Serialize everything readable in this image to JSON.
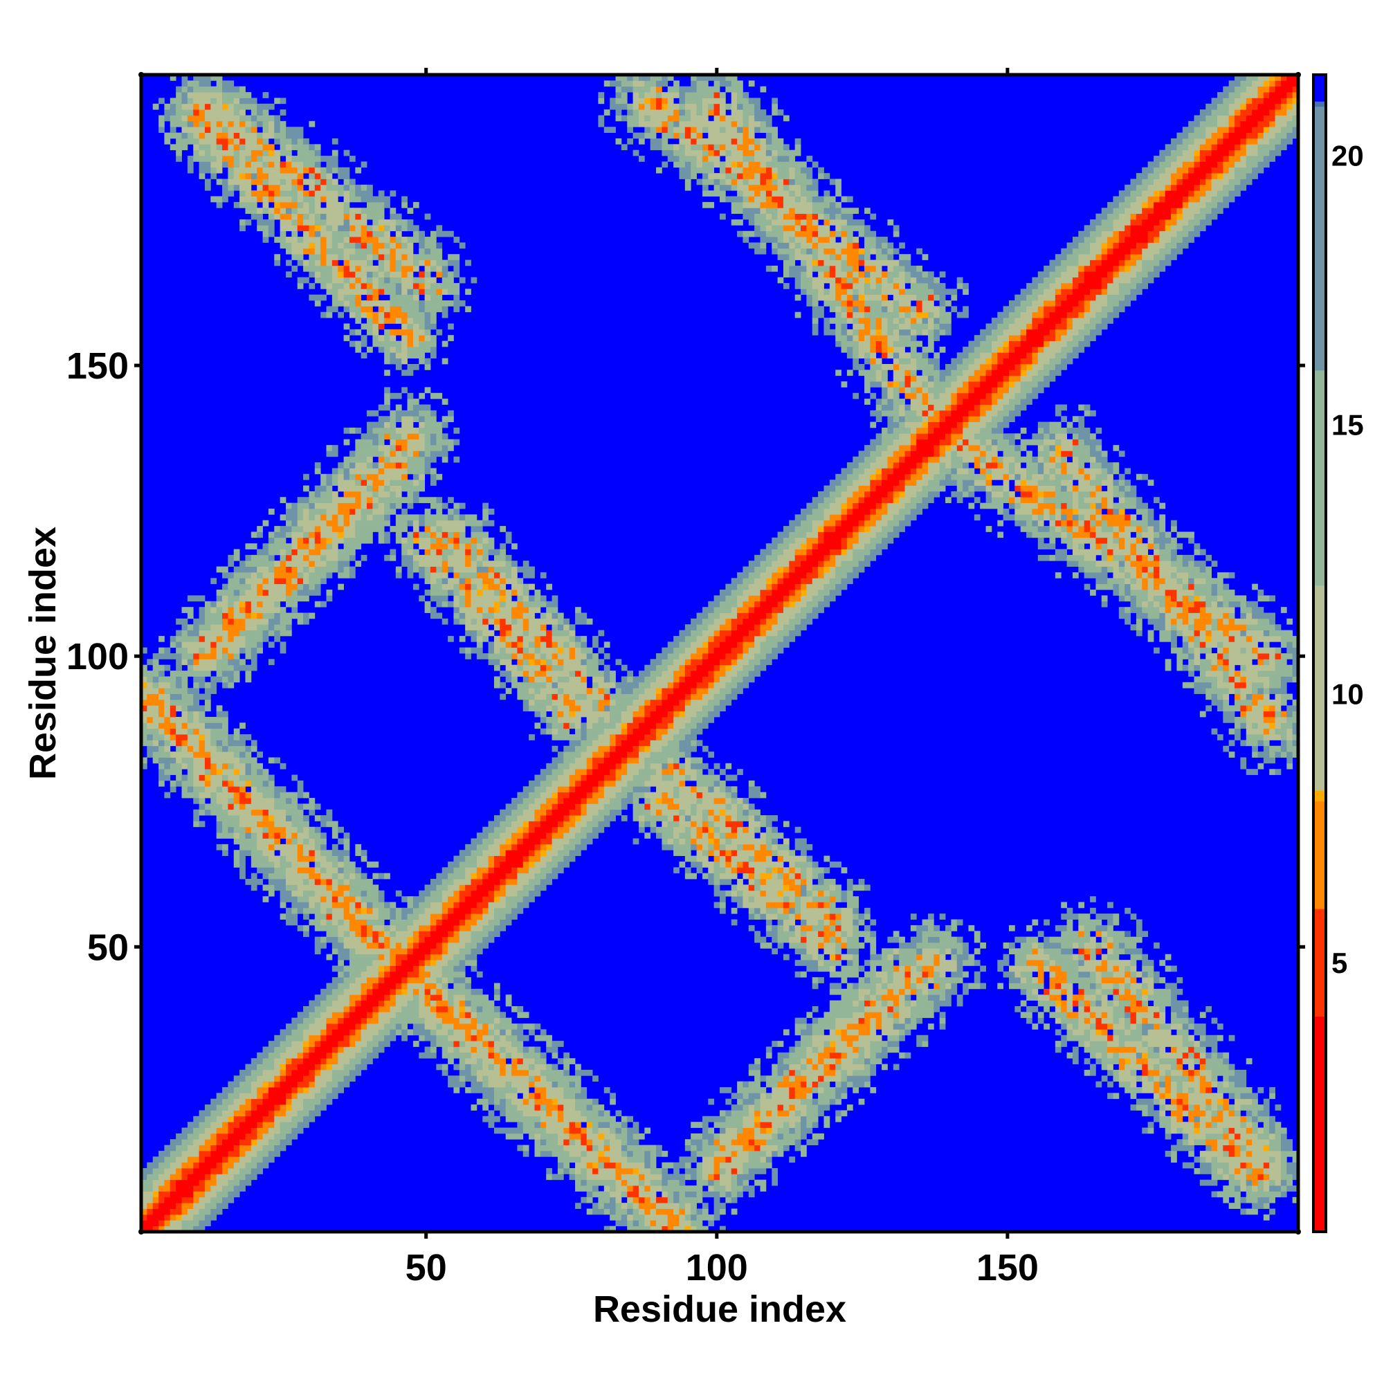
{
  "chart_data": {
    "type": "heatmap",
    "title": "",
    "xlabel": "Residue index",
    "ylabel": "Residue index",
    "xlim": [
      1,
      200
    ],
    "ylim": [
      1,
      200
    ],
    "x_ticks": [
      50,
      100,
      150
    ],
    "x_tick_labels": [
      "50",
      "100",
      "150"
    ],
    "y_ticks": [
      50,
      100,
      150
    ],
    "y_tick_labels": [
      "50",
      "100",
      "150"
    ],
    "grid": false,
    "colorbar": {
      "range": [
        0,
        21.5
      ],
      "ticks": [
        5,
        10,
        15,
        20
      ],
      "tick_labels": [
        "5",
        "10",
        "15",
        "20"
      ],
      "colors": [
        {
          "value": 0,
          "color": "#ff0000"
        },
        {
          "value": 4,
          "color": "#ff3300"
        },
        {
          "value": 6,
          "color": "#ff8800"
        },
        {
          "value": 8,
          "color": "#ffaa00"
        },
        {
          "value": 8.2,
          "color": "#b7c095"
        },
        {
          "value": 12,
          "color": "#93b598"
        },
        {
          "value": 16,
          "color": "#6f94a8"
        },
        {
          "value": 20.9,
          "color": "#4a72ae"
        },
        {
          "value": 21,
          "color": "#0000ff"
        }
      ]
    },
    "matrix_description": "symmetric residue-residue distance map, values in the colorbar units",
    "diagonal_band_width": 10,
    "features": [
      {
        "kind": "antidiagonal",
        "from": [
          1,
          92
        ],
        "to": [
          45,
          47
        ],
        "width": 6
      },
      {
        "kind": "antidiagonal",
        "from": [
          47,
          45
        ],
        "to": [
          93,
          2
        ],
        "width": 6
      },
      {
        "kind": "antidiagonal",
        "from": [
          12,
          195
        ],
        "to": [
          50,
          165
        ],
        "width": 6
      },
      {
        "kind": "antidiagonal",
        "from": [
          88,
          196
        ],
        "to": [
          135,
          160
        ],
        "width": 6
      },
      {
        "kind": "antidiagonal",
        "from": [
          141,
          137
        ],
        "to": [
          195,
          100
        ],
        "width": 6
      },
      {
        "kind": "antidiagonal",
        "from": [
          155,
          47
        ],
        "to": [
          193,
          10
        ],
        "width": 5
      },
      {
        "kind": "antidiagonal",
        "from": [
          100,
          12
        ],
        "to": [
          138,
          47
        ],
        "width": 6
      },
      {
        "kind": "antidiagonal",
        "from": [
          15,
          105
        ],
        "to": [
          45,
          132
        ],
        "width": 5
      },
      {
        "kind": "antidiagonal",
        "from": [
          55,
          120
        ],
        "to": [
          80,
          92
        ],
        "width": 5
      },
      {
        "kind": "antidiagonal",
        "from": [
          90,
          75
        ],
        "to": [
          120,
          50
        ],
        "width": 5
      }
    ]
  }
}
